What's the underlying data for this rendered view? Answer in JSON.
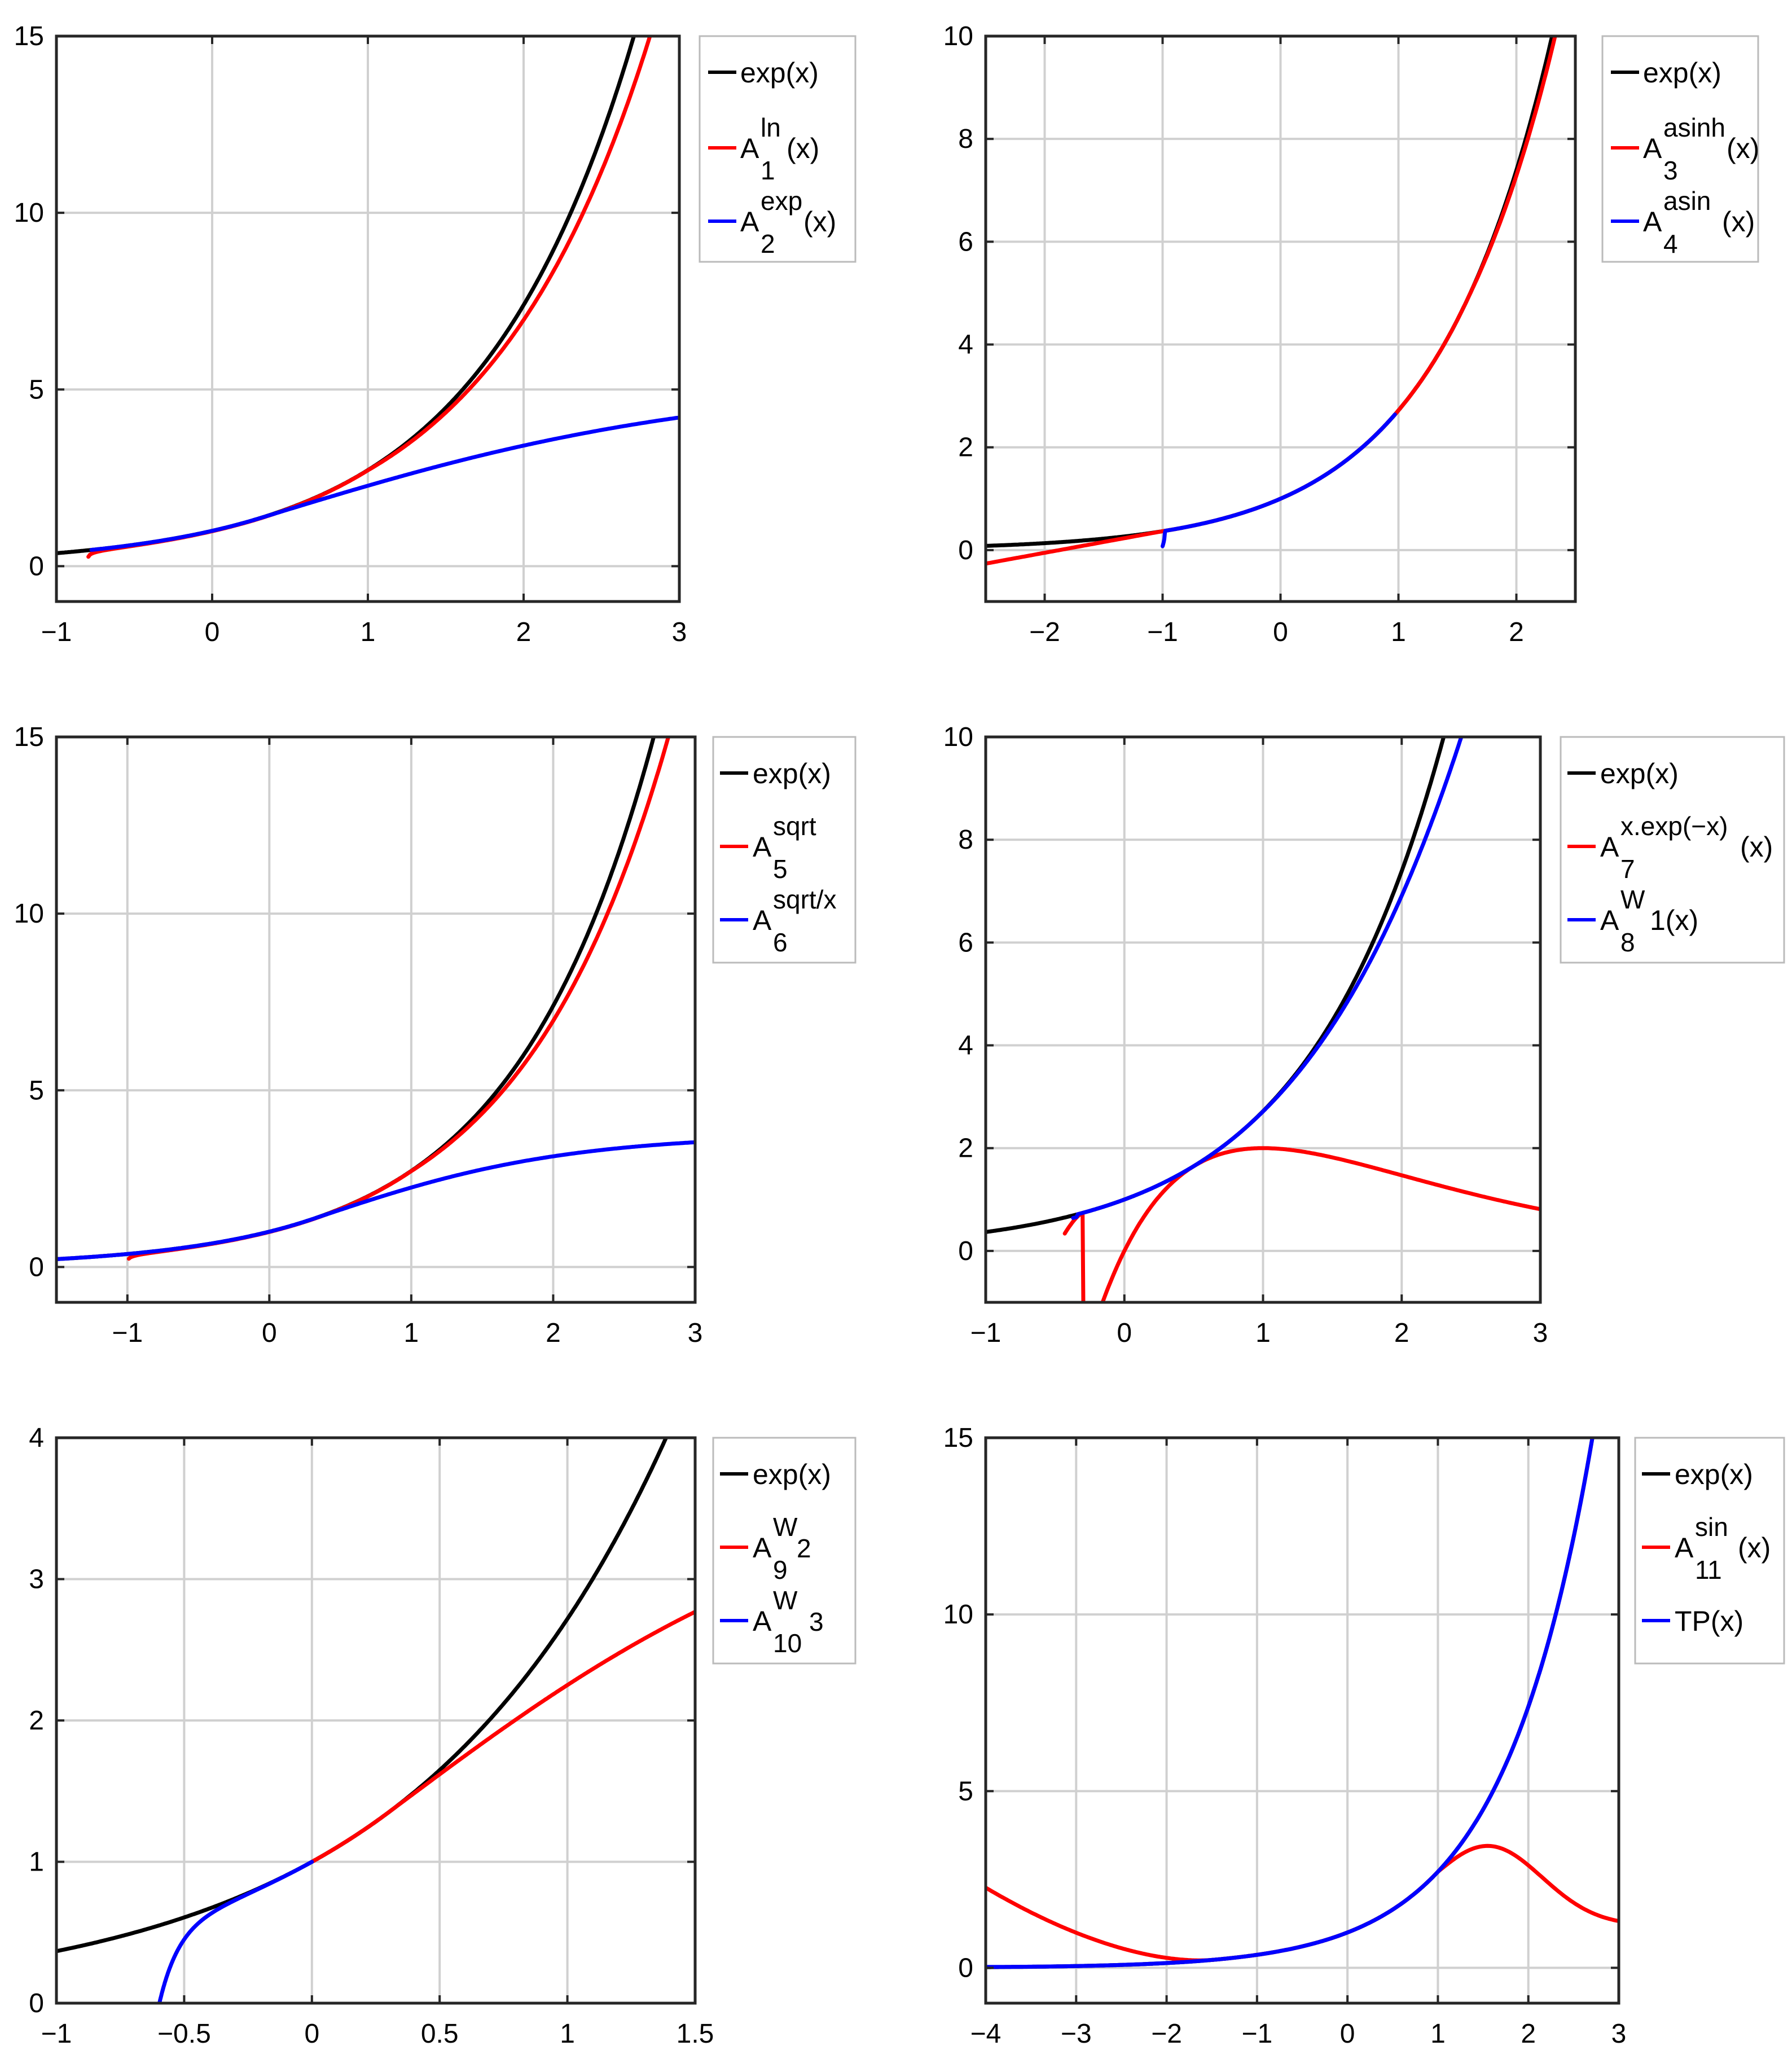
{
  "chart_data": [
    {
      "type": "line",
      "xlim": [
        -1,
        3
      ],
      "ylim": [
        -1,
        15
      ],
      "xticks": [
        -1,
        0,
        1,
        2,
        3
      ],
      "yticks": [
        0,
        5,
        10,
        15
      ],
      "xticklabels": [
        "−1",
        "0",
        "1",
        "2",
        "3"
      ],
      "yticklabels": [
        "0",
        "5",
        "10",
        "15"
      ],
      "grid": true,
      "legend_position": "outside-right-top",
      "series": [
        {
          "name": "exp(x)",
          "base": "A",
          "sup": "",
          "sub": "",
          "tail": "",
          "color": "#000000",
          "fn": "exp",
          "params": [],
          "domain": [
            -1,
            3
          ]
        },
        {
          "name": "A_1^ln(x)",
          "base": "A",
          "sup": "ln",
          "sub": "1",
          "tail": "(x)",
          "color": "#ff0000",
          "fn": "logpole",
          "params": [
            -0.8,
            3.8,
            0.05
          ],
          "domain": [
            -0.795,
            3
          ]
        },
        {
          "name": "A_2^exp(x)",
          "base": "A",
          "sup": "exp",
          "sub": "2",
          "tail": "(x)",
          "color": "#0000ff",
          "fn": "saturate",
          "params": [
            -0.78,
            3.9,
            0.06
          ],
          "domain": [
            -0.775,
            3
          ]
        }
      ]
    },
    {
      "type": "line",
      "xlim": [
        -2.5,
        2.5
      ],
      "ylim": [
        -1,
        10
      ],
      "xticks": [
        -2,
        -1,
        0,
        1,
        2
      ],
      "yticks": [
        0,
        2,
        4,
        6,
        8,
        10
      ],
      "xticklabels": [
        "−2",
        "−1",
        "0",
        "1",
        "2"
      ],
      "yticklabels": [
        "0",
        "2",
        "4",
        "6",
        "8",
        "10"
      ],
      "grid": true,
      "legend_position": "outside-right-top",
      "series": [
        {
          "name": "exp(x)",
          "base": "A",
          "sup": "",
          "sub": "",
          "tail": "",
          "color": "#000000",
          "fn": "exp",
          "params": [],
          "domain": [
            -2.5,
            2.5
          ]
        },
        {
          "name": "A_3^asinh(x)",
          "base": "A",
          "sup": "asinh",
          "sub": "3",
          "tail": "(x)",
          "color": "#ff0000",
          "fn": "asinhfit",
          "params": [],
          "domain": [
            -2.5,
            2.5
          ]
        },
        {
          "name": "A_4^asin(x)",
          "base": "A",
          "sup": "asin",
          "sub": "4",
          "tail": "(x)",
          "color": "#0000ff",
          "fn": "asinfit",
          "params": [],
          "domain": [
            -1,
            0.97
          ]
        }
      ]
    },
    {
      "type": "line",
      "xlim": [
        -1.5,
        3
      ],
      "ylim": [
        -1,
        15
      ],
      "xticks": [
        -1,
        0,
        1,
        2,
        3
      ],
      "yticks": [
        0,
        5,
        10,
        15
      ],
      "xticklabels": [
        "−1",
        "0",
        "1",
        "2",
        "3"
      ],
      "yticklabels": [
        "0",
        "5",
        "10",
        "15"
      ],
      "grid": true,
      "legend_position": "outside-right-top",
      "series": [
        {
          "name": "exp(x)",
          "base": "A",
          "sup": "",
          "sub": "",
          "tail": "",
          "color": "#000000",
          "fn": "exp",
          "params": [],
          "domain": [
            -1.5,
            3
          ]
        },
        {
          "name": "A_5^sqrt",
          "base": "A",
          "sup": "sqrt",
          "sub": "5",
          "tail": "",
          "color": "#ff0000",
          "fn": "logpole",
          "params": [
            -1.0,
            2.2,
            0.045
          ],
          "domain": [
            -0.99,
            3
          ]
        },
        {
          "name": "A_6^sqrt/x",
          "base": "A",
          "sup": "sqrt/x",
          "sub": "6",
          "tail": "",
          "color": "#0000ff",
          "fn": "saturate",
          "params": [
            -1000000000.0,
            2.4,
            0
          ],
          "domain": [
            -1.5,
            3
          ]
        }
      ]
    },
    {
      "type": "line",
      "xlim": [
        -1,
        3
      ],
      "ylim": [
        -1,
        10
      ],
      "xticks": [
        -1,
        0,
        1,
        2,
        3
      ],
      "yticks": [
        0,
        2,
        4,
        6,
        8,
        10
      ],
      "xticklabels": [
        "−1",
        "0",
        "1",
        "2",
        "3"
      ],
      "yticklabels": [
        "0",
        "2",
        "4",
        "6",
        "8",
        "10"
      ],
      "grid": true,
      "legend_position": "outside-right-top",
      "series": [
        {
          "name": "exp(x)",
          "base": "A",
          "sup": "",
          "sub": "",
          "tail": "",
          "color": "#000000",
          "fn": "exp",
          "params": [],
          "domain": [
            -1,
            3
          ]
        },
        {
          "name": "A_7^x.exp(−x)(x)",
          "base": "A",
          "sup": "x.exp(−x)",
          "sub": "7",
          "tail": "(x)",
          "color": "#ff0000",
          "fn": "xexp",
          "params": [],
          "domain": [
            -0.43,
            3
          ]
        },
        {
          "name": "A_8^W1(x)",
          "base": "A",
          "sup": "W",
          "sub": "8",
          "tail": "1(x)",
          "color": "#0000ff",
          "fn": "w1fit",
          "params": [],
          "domain": [
            -0.37,
            3
          ]
        }
      ]
    },
    {
      "type": "line",
      "xlim": [
        -1,
        1.5
      ],
      "ylim": [
        0,
        4
      ],
      "xticks": [
        -1,
        -0.5,
        0,
        0.5,
        1,
        1.5
      ],
      "yticks": [
        0,
        1,
        2,
        3,
        4
      ],
      "xticklabels": [
        "−1",
        "−0.5",
        "0",
        "0.5",
        "1",
        "1.5"
      ],
      "yticklabels": [
        "0",
        "1",
        "2",
        "3",
        "4"
      ],
      "grid": true,
      "legend_position": "outside-right-top",
      "series": [
        {
          "name": "exp(x)",
          "base": "A",
          "sup": "",
          "sub": "",
          "tail": "",
          "color": "#000000",
          "fn": "exp",
          "params": [],
          "domain": [
            -1,
            1.5
          ]
        },
        {
          "name": "A_9^W2",
          "base": "A",
          "sup": "W",
          "sub": "9",
          "tail": "2",
          "color": "#ff0000",
          "fn": "saturate",
          "params": [
            -1000000000.0,
            2.45,
            0
          ],
          "domain": [
            0,
            1.5
          ]
        },
        {
          "name": "A_10^W3",
          "base": "A",
          "sup": "W",
          "sub": "10",
          "tail": "3",
          "color": "#0000ff",
          "fn": "w3fit",
          "params": [],
          "domain": [
            -0.597,
            0
          ]
        }
      ]
    },
    {
      "type": "line",
      "xlim": [
        -4,
        3
      ],
      "ylim": [
        -1,
        15
      ],
      "xticks": [
        -4,
        -3,
        -2,
        -1,
        0,
        1,
        2,
        3
      ],
      "yticks": [
        0,
        5,
        10,
        15
      ],
      "xticklabels": [
        "−4",
        "−3",
        "−2",
        "−1",
        "0",
        "1",
        "2",
        "3"
      ],
      "yticklabels": [
        "0",
        "5",
        "10",
        "15"
      ],
      "grid": true,
      "legend_position": "outside-right-top",
      "series": [
        {
          "name": "exp(x)",
          "base": "A",
          "sup": "",
          "sub": "",
          "tail": "",
          "color": "#000000",
          "fn": "exp",
          "params": [],
          "domain": [
            -4,
            2.75
          ]
        },
        {
          "name": "A_11^sin(x)",
          "base": "A",
          "sup": "sin",
          "sub": "11",
          "tail": "(x)",
          "color": "#ff0000",
          "fn": "sinfit",
          "params": [],
          "domain": [
            -4,
            3
          ]
        },
        {
          "name": "TP(x)",
          "base": "A",
          "sup": "",
          "sub": "",
          "tail": "",
          "color": "#0000ff",
          "fn": "taylor",
          "params": [],
          "domain": [
            -4,
            3
          ]
        }
      ]
    }
  ]
}
